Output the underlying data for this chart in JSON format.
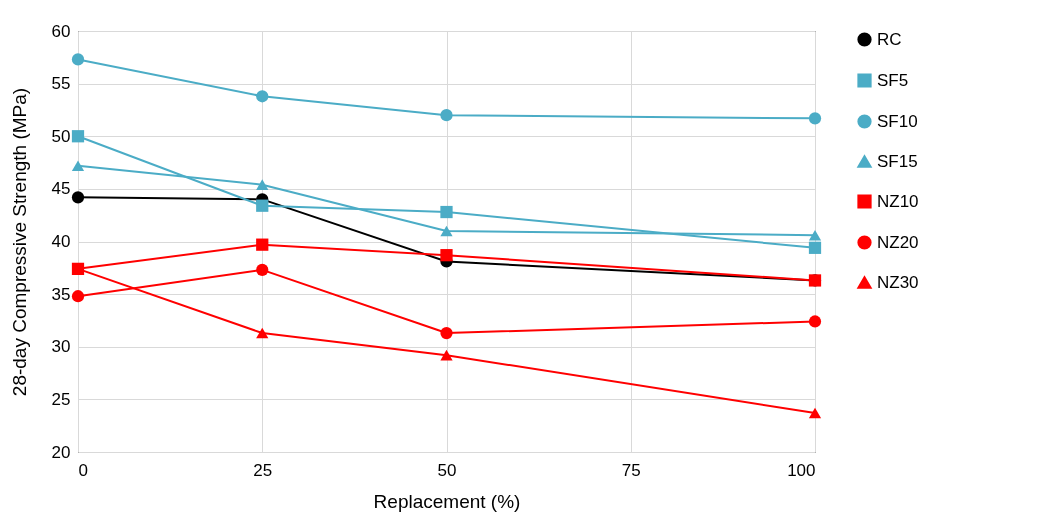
{
  "chart_data": {
    "type": "line",
    "xlabel": "Replacement (%)",
    "ylabel": "28-day Compressive Strength (MPa)",
    "x": [
      0,
      25,
      50,
      100
    ],
    "xlim": [
      0,
      100
    ],
    "xticks": [
      0,
      25,
      50,
      75,
      100
    ],
    "ylim": [
      20,
      60
    ],
    "yticks": [
      20,
      25,
      30,
      35,
      40,
      45,
      50,
      55,
      60
    ],
    "grid": true,
    "legend": "right",
    "line_style": "solid",
    "series": [
      {
        "name": "RC",
        "color": "#000000",
        "marker": "circle",
        "values": [
          44.2,
          44.0,
          38.1,
          36.3
        ]
      },
      {
        "name": "SF5",
        "color": "#4bacc6",
        "marker": "square",
        "values": [
          50.0,
          43.4,
          42.8,
          39.4
        ]
      },
      {
        "name": "SF10",
        "color": "#4bacc6",
        "marker": "circle",
        "values": [
          57.3,
          53.8,
          52.0,
          51.7
        ]
      },
      {
        "name": "SF15",
        "color": "#4bacc6",
        "marker": "triangle",
        "values": [
          47.2,
          45.4,
          41.0,
          40.6
        ]
      },
      {
        "name": "NZ10",
        "color": "#ff0000",
        "marker": "square",
        "values": [
          37.4,
          39.7,
          38.7,
          36.3
        ]
      },
      {
        "name": "NZ20",
        "color": "#ff0000",
        "marker": "circle",
        "values": [
          34.8,
          37.3,
          31.3,
          32.4
        ]
      },
      {
        "name": "NZ30",
        "color": "#ff0000",
        "marker": "triangle",
        "values": [
          37.4,
          31.3,
          29.2,
          23.7
        ]
      }
    ]
  }
}
